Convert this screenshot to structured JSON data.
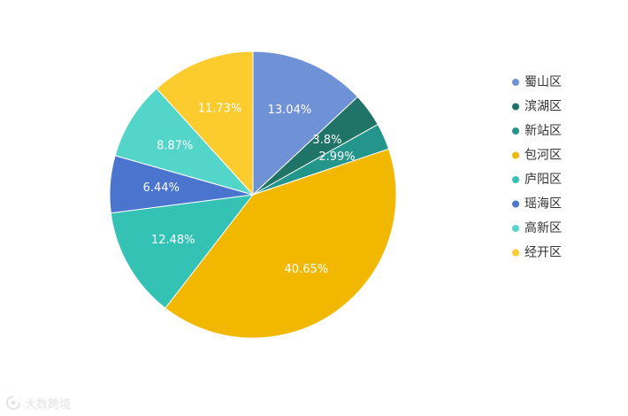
{
  "chart_data": {
    "type": "pie",
    "categories": [
      "蜀山区",
      "滨湖区",
      "新站区",
      "包河区",
      "庐阳区",
      "瑶海区",
      "高新区",
      "经开区"
    ],
    "values": [
      13.04,
      3.8,
      2.99,
      40.65,
      12.48,
      6.44,
      8.87,
      11.73
    ],
    "labels": [
      "13.04%",
      "3.8%",
      "2.99%",
      "40.65%",
      "12.48%",
      "6.44%",
      "8.87%",
      "11.73%"
    ],
    "colors": [
      "#6f91d6",
      "#1f7367",
      "#24958a",
      "#f2b800",
      "#33c2b4",
      "#4a74ce",
      "#54d5c9",
      "#fccb2e"
    ],
    "legend_position": "right"
  },
  "watermark": {
    "text": "大数跨境"
  }
}
